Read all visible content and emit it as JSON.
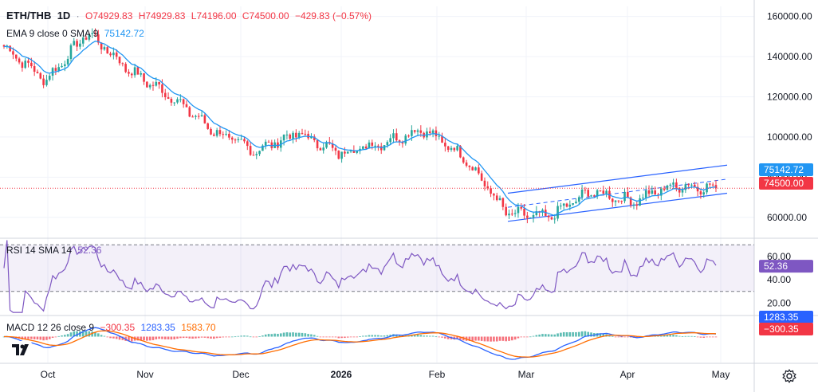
{
  "symbol": "ETH/THB",
  "interval": "1D",
  "ohlc": {
    "o": "O74929.83",
    "h": "H74929.83",
    "l": "L74196.00",
    "c": "C74500.00",
    "chg": "−429.83 (−0.57%)"
  },
  "ema_legend": {
    "label": "EMA 9 close 0 SMA 9",
    "value": "75142.72"
  },
  "rsi_legend": {
    "label": "RSI 14 SMA 14",
    "value": "52.36"
  },
  "macd_legend": {
    "label": "MACD 12 26 close 9",
    "v1": "−300.35",
    "v2": "1283.35",
    "v3": "1583.70"
  },
  "price_axis_labels": [
    "160000.00",
    "140000.00",
    "120000.00",
    "100000.00",
    "80000.00",
    "60000.00"
  ],
  "price_tags": {
    "ema": "75142.72",
    "last": "74500.00"
  },
  "rsi_axis_labels": [
    "60.00",
    "40.00",
    "20.00"
  ],
  "rsi_tag": "52.36",
  "macd_tags": {
    "signal": "1283.35",
    "macd": "−300.35"
  },
  "time_labels": [
    "Oct",
    "Nov",
    "Dec",
    "2026",
    "Feb",
    "Mar",
    "Apr",
    "May"
  ],
  "colors": {
    "up": "#26a69a",
    "down": "#f23645",
    "ema": "#2196f3",
    "rsi": "#7e57c2",
    "macd": "#2962ff",
    "signal": "#ff6d00",
    "channel": "#2962ff"
  },
  "chart_data": [
    {
      "type": "candlestick",
      "title": "ETH/THB · 1D",
      "ylim": [
        50000,
        165000
      ],
      "x_range": [
        "Sep 2025",
        "May 2026"
      ],
      "key_points_close": [
        {
          "t": "Sep",
          "v": 145000
        },
        {
          "t": "early Oct",
          "v": 128000
        },
        {
          "t": "mid Oct",
          "v": 152000
        },
        {
          "t": "late Oct",
          "v": 133000
        },
        {
          "t": "Nov",
          "v": 120000
        },
        {
          "t": "mid Nov",
          "v": 103000
        },
        {
          "t": "Dec",
          "v": 93000
        },
        {
          "t": "mid Dec",
          "v": 102000
        },
        {
          "t": "late Dec",
          "v": 92000
        },
        {
          "t": "Jan 2026",
          "v": 97000
        },
        {
          "t": "mid Jan",
          "v": 104000
        },
        {
          "t": "late Jan",
          "v": 90000
        },
        {
          "t": "Feb",
          "v": 62000
        },
        {
          "t": "late Feb",
          "v": 60000
        },
        {
          "t": "mid Mar",
          "v": 73000
        },
        {
          "t": "Apr",
          "v": 68000
        },
        {
          "t": "mid Apr",
          "v": 76000
        },
        {
          "t": "late Apr",
          "v": 74500
        }
      ],
      "last_close": 74500.0,
      "ema9_last": 75142.72,
      "overlay": "ascending parallel channel (late Feb to late Apr)"
    },
    {
      "type": "line",
      "title": "RSI 14 SMA 14",
      "ylim": [
        10,
        75
      ],
      "bands": [
        70,
        30
      ],
      "last": 52.36
    },
    {
      "type": "histogram+line",
      "title": "MACD 12 26 close 9",
      "macd_last": -300.35,
      "signal_last": 1283.35,
      "hist_last": 1583.7
    }
  ]
}
